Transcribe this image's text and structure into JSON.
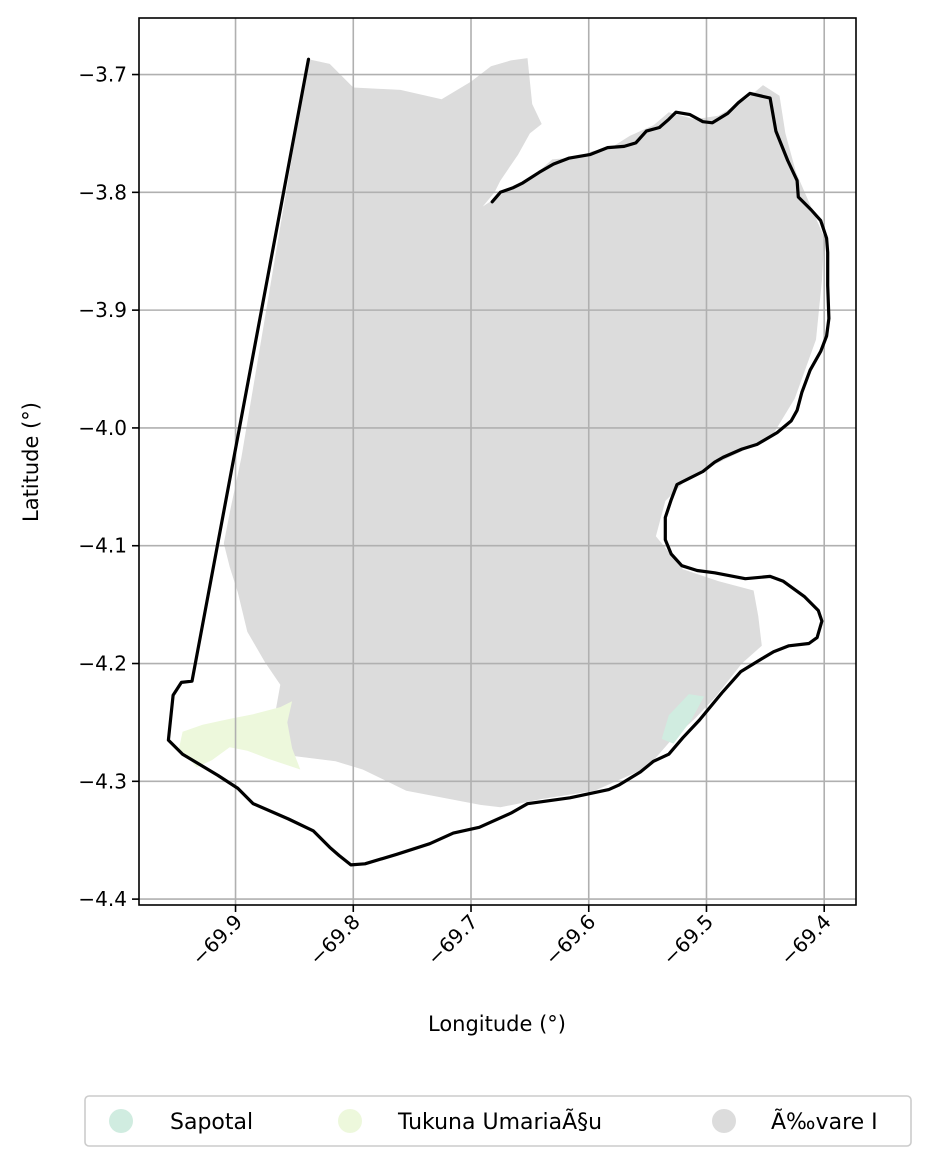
{
  "chart_data": {
    "type": "map",
    "xlabel": "Longitude (°)",
    "ylabel": "Latitude (°)",
    "xlim": [
      -69.982,
      -69.373
    ],
    "ylim": [
      -4.405,
      -3.652
    ],
    "xticks": [
      -69.9,
      -69.8,
      -69.7,
      -69.6,
      -69.5,
      -69.4
    ],
    "xtick_labels": [
      "−69.9",
      "−69.8",
      "−69.7",
      "−69.6",
      "−69.5",
      "−69.4"
    ],
    "yticks": [
      -3.7,
      -3.8,
      -3.9,
      -4.0,
      -4.1,
      -4.2,
      -4.3,
      -4.4
    ],
    "ytick_labels": [
      "−3.7",
      "−3.8",
      "−3.9",
      "−4.0",
      "−4.1",
      "−4.2",
      "−4.3",
      "−4.4"
    ],
    "grid": true,
    "legend_position": "bottom-center",
    "legend": [
      {
        "label": "Sapotal",
        "color": "#d0ece0"
      },
      {
        "label": "Tukuna UmariaÃ§u",
        "color": "#edf8dc"
      },
      {
        "label": "Ã‰vare I",
        "color": "#dcdcdc"
      }
    ],
    "regions": [
      {
        "name": "Ã‰vare I",
        "color": "#dcdcdc",
        "coords": [
          [
            -69.838,
            -3.687
          ],
          [
            -69.82,
            -3.691
          ],
          [
            -69.8,
            -3.711
          ],
          [
            -69.76,
            -3.713
          ],
          [
            -69.725,
            -3.721
          ],
          [
            -69.7,
            -3.706
          ],
          [
            -69.683,
            -3.693
          ],
          [
            -69.666,
            -3.688
          ],
          [
            -69.652,
            -3.686
          ],
          [
            -69.648,
            -3.725
          ],
          [
            -69.64,
            -3.742
          ],
          [
            -69.65,
            -3.75
          ],
          [
            -69.66,
            -3.768
          ],
          [
            -69.675,
            -3.79
          ],
          [
            -69.68,
            -3.8
          ],
          [
            -69.69,
            -3.812
          ],
          [
            -69.667,
            -3.797
          ],
          [
            -69.65,
            -3.789
          ],
          [
            -69.631,
            -3.772
          ],
          [
            -69.608,
            -3.77
          ],
          [
            -69.597,
            -3.765
          ],
          [
            -69.581,
            -3.762
          ],
          [
            -69.565,
            -3.752
          ],
          [
            -69.545,
            -3.743
          ],
          [
            -69.532,
            -3.732
          ],
          [
            -69.51,
            -3.738
          ],
          [
            -69.49,
            -3.735
          ],
          [
            -69.465,
            -3.72
          ],
          [
            -69.452,
            -3.709
          ],
          [
            -69.438,
            -3.718
          ],
          [
            -69.433,
            -3.75
          ],
          [
            -69.424,
            -3.783
          ],
          [
            -69.41,
            -3.815
          ],
          [
            -69.4,
            -3.838
          ],
          [
            -69.402,
            -3.875
          ],
          [
            -69.407,
            -3.925
          ],
          [
            -69.425,
            -3.975
          ],
          [
            -69.445,
            -4.008
          ],
          [
            -69.485,
            -4.027
          ],
          [
            -69.515,
            -4.042
          ],
          [
            -69.535,
            -4.062
          ],
          [
            -69.543,
            -4.092
          ],
          [
            -69.52,
            -4.12
          ],
          [
            -69.49,
            -4.13
          ],
          [
            -69.46,
            -4.138
          ],
          [
            -69.456,
            -4.16
          ],
          [
            -69.453,
            -4.185
          ],
          [
            -69.47,
            -4.2
          ],
          [
            -69.492,
            -4.228
          ],
          [
            -69.51,
            -4.247
          ],
          [
            -69.53,
            -4.265
          ],
          [
            -69.55,
            -4.288
          ],
          [
            -69.595,
            -4.308
          ],
          [
            -69.64,
            -4.315
          ],
          [
            -69.675,
            -4.322
          ],
          [
            -69.692,
            -4.32
          ],
          [
            -69.755,
            -4.308
          ],
          [
            -69.792,
            -4.29
          ],
          [
            -69.815,
            -4.283
          ],
          [
            -69.855,
            -4.278
          ],
          [
            -69.87,
            -4.262
          ],
          [
            -69.865,
            -4.235
          ],
          [
            -69.862,
            -4.218
          ],
          [
            -69.875,
            -4.199
          ],
          [
            -69.89,
            -4.173
          ],
          [
            -69.898,
            -4.14
          ],
          [
            -69.905,
            -4.118
          ],
          [
            -69.91,
            -4.098
          ],
          [
            -69.905,
            -4.072
          ],
          [
            -69.895,
            -4.025
          ]
        ]
      },
      {
        "name": "Tukuna UmariaÃ§u",
        "color": "#edf8dc",
        "coords": [
          [
            -69.945,
            -4.258
          ],
          [
            -69.928,
            -4.252
          ],
          [
            -69.905,
            -4.247
          ],
          [
            -69.885,
            -4.243
          ],
          [
            -69.862,
            -4.237
          ],
          [
            -69.852,
            -4.232
          ],
          [
            -69.856,
            -4.25
          ],
          [
            -69.852,
            -4.272
          ],
          [
            -69.845,
            -4.29
          ],
          [
            -69.872,
            -4.281
          ],
          [
            -69.89,
            -4.274
          ],
          [
            -69.905,
            -4.271
          ],
          [
            -69.92,
            -4.282
          ],
          [
            -69.933,
            -4.288
          ],
          [
            -69.948,
            -4.272
          ]
        ]
      },
      {
        "name": "Sapotal",
        "color": "#d0ece0",
        "coords": [
          [
            -69.515,
            -4.226
          ],
          [
            -69.502,
            -4.228
          ],
          [
            -69.513,
            -4.248
          ],
          [
            -69.528,
            -4.268
          ],
          [
            -69.538,
            -4.264
          ],
          [
            -69.532,
            -4.244
          ]
        ]
      }
    ],
    "boundary": [
      [
        -69.838,
        -3.687
      ],
      [
        -69.82,
        -3.691
      ],
      [
        -69.808,
        -3.699
      ],
      [
        -69.8,
        -3.709
      ],
      [
        -69.788,
        -3.71
      ],
      [
        -69.77,
        -3.711
      ],
      [
        -69.745,
        -3.712
      ],
      [
        -69.73,
        -3.715
      ],
      [
        -69.712,
        -3.723
      ],
      [
        -69.704,
        -3.721
      ],
      [
        -69.693,
        -3.708
      ],
      [
        -69.672,
        -3.692
      ],
      [
        -69.66,
        -3.686
      ],
      [
        -69.645,
        -3.688
      ],
      [
        -69.65,
        -3.701
      ],
      [
        -69.654,
        -3.722
      ],
      [
        -69.653,
        -3.742
      ],
      [
        -69.664,
        -3.752
      ],
      [
        -69.671,
        -3.762
      ],
      [
        -69.676,
        -3.777
      ],
      [
        -69.679,
        -3.788
      ],
      [
        -69.676,
        -3.796
      ],
      [
        -69.683,
        -3.801
      ],
      [
        -69.682,
        -3.809
      ],
      [
        -69.693,
        -3.81
      ],
      [
        -69.688,
        -3.796
      ],
      [
        -69.684,
        -3.788
      ],
      [
        -69.69,
        -3.776
      ],
      [
        -69.694,
        -3.768
      ],
      [
        -69.699,
        -3.755
      ],
      [
        -69.709,
        -3.742
      ],
      [
        -69.712,
        -3.733
      ],
      [
        -69.716,
        -3.724
      ],
      [
        -69.735,
        -3.715
      ],
      [
        -69.758,
        -3.714
      ],
      [
        -69.776,
        -3.711
      ],
      [
        -69.793,
        -3.711
      ],
      [
        -69.808,
        -3.701
      ],
      [
        -69.822,
        -3.692
      ],
      [
        -69.838,
        -3.687
      ]
    ],
    "outline": [
      [
        -69.838,
        -3.687
      ],
      [
        -69.937,
        -4.215
      ],
      [
        -69.946,
        -4.216
      ],
      [
        -69.953,
        -4.227
      ],
      [
        -69.957,
        -4.265
      ],
      [
        -69.945,
        -4.277
      ],
      [
        -69.915,
        -4.295
      ],
      [
        -69.898,
        -4.306
      ],
      [
        -69.885,
        -4.319
      ],
      [
        -69.855,
        -4.332
      ],
      [
        -69.834,
        -4.342
      ],
      [
        -69.82,
        -4.356
      ],
      [
        -69.812,
        -4.363
      ],
      [
        -69.802,
        -4.371
      ],
      [
        -69.79,
        -4.37
      ],
      [
        -69.763,
        -4.362
      ],
      [
        -69.735,
        -4.353
      ],
      [
        -69.715,
        -4.344
      ],
      [
        -69.693,
        -4.339
      ],
      [
        -69.666,
        -4.327
      ],
      [
        -69.652,
        -4.319
      ],
      [
        -69.616,
        -4.314
      ],
      [
        -69.597,
        -4.31
      ],
      [
        -69.583,
        -4.307
      ],
      [
        -69.574,
        -4.303
      ],
      [
        -69.556,
        -4.292
      ],
      [
        -69.545,
        -4.283
      ],
      [
        -69.532,
        -4.277
      ],
      [
        -69.52,
        -4.263
      ],
      [
        -69.506,
        -4.248
      ],
      [
        -69.487,
        -4.225
      ],
      [
        -69.471,
        -4.207
      ],
      [
        -69.453,
        -4.196
      ],
      [
        -69.443,
        -4.19
      ],
      [
        -69.43,
        -4.185
      ],
      [
        -69.413,
        -4.183
      ],
      [
        -69.406,
        -4.178
      ],
      [
        -69.402,
        -4.164
      ],
      [
        -69.405,
        -4.155
      ],
      [
        -69.417,
        -4.143
      ],
      [
        -69.435,
        -4.13
      ],
      [
        -69.446,
        -4.126
      ],
      [
        -69.467,
        -4.128
      ],
      [
        -69.493,
        -4.123
      ],
      [
        -69.508,
        -4.121
      ],
      [
        -69.521,
        -4.117
      ],
      [
        -69.53,
        -4.107
      ],
      [
        -69.535,
        -4.095
      ],
      [
        -69.535,
        -4.076
      ],
      [
        -69.53,
        -4.061
      ],
      [
        -69.525,
        -4.048
      ],
      [
        -69.515,
        -4.043
      ],
      [
        -69.503,
        -4.037
      ],
      [
        -69.493,
        -4.029
      ],
      [
        -69.486,
        -4.025
      ],
      [
        -69.47,
        -4.018
      ],
      [
        -69.457,
        -4.014
      ],
      [
        -69.44,
        -4.004
      ],
      [
        -69.428,
        -3.994
      ],
      [
        -69.423,
        -3.985
      ],
      [
        -69.419,
        -3.97
      ],
      [
        -69.412,
        -3.951
      ],
      [
        -69.403,
        -3.935
      ],
      [
        -69.398,
        -3.922
      ],
      [
        -69.396,
        -3.907
      ],
      [
        -69.397,
        -3.879
      ],
      [
        -69.397,
        -3.851
      ],
      [
        -69.398,
        -3.839
      ],
      [
        -69.403,
        -3.824
      ],
      [
        -69.411,
        -3.815
      ],
      [
        -69.422,
        -3.804
      ],
      [
        -69.423,
        -3.79
      ],
      [
        -69.431,
        -3.773
      ],
      [
        -69.441,
        -3.748
      ],
      [
        -69.446,
        -3.72
      ],
      [
        -69.463,
        -3.716
      ],
      [
        -69.473,
        -3.724
      ],
      [
        -69.482,
        -3.733
      ],
      [
        -69.495,
        -3.741
      ],
      [
        -69.503,
        -3.74
      ],
      [
        -69.514,
        -3.734
      ],
      [
        -69.526,
        -3.732
      ],
      [
        -69.532,
        -3.738
      ],
      [
        -69.54,
        -3.745
      ],
      [
        -69.551,
        -3.748
      ],
      [
        -69.56,
        -3.758
      ],
      [
        -69.57,
        -3.761
      ],
      [
        -69.584,
        -3.762
      ],
      [
        -69.599,
        -3.768
      ],
      [
        -69.617,
        -3.771
      ],
      [
        -69.63,
        -3.776
      ],
      [
        -69.642,
        -3.783
      ],
      [
        -69.656,
        -3.792
      ],
      [
        -69.664,
        -3.796
      ],
      [
        -69.675,
        -3.8
      ],
      [
        -69.682,
        -3.808
      ]
    ]
  }
}
